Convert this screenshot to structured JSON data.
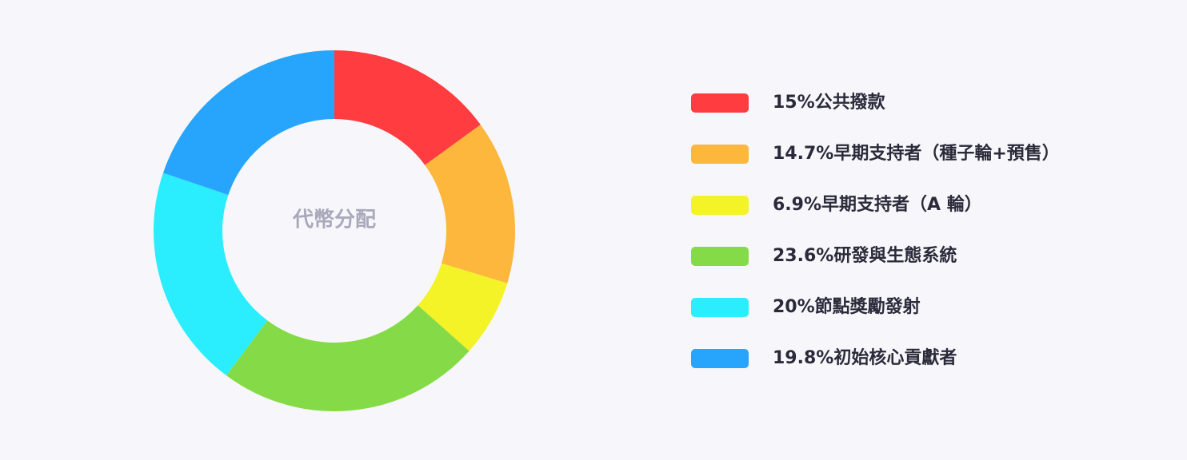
{
  "chart_data": {
    "type": "pie",
    "variant": "donut",
    "center_label": "代幣分配",
    "categories": [
      "15%公共撥款",
      "14.7%早期支持者（種子輪+預售）",
      "6.9%早期支持者（A 輪）",
      "23.6%研發與生態系統",
      "20%節點獎勵發射",
      "19.8%初始核心貢獻者"
    ],
    "values": [
      15,
      14.7,
      6.9,
      23.6,
      20,
      19.8
    ],
    "colors": [
      "#ff3c3f",
      "#fdb73c",
      "#f4f327",
      "#85db47",
      "#2aeefe",
      "#27a5fd"
    ],
    "legend_position": "right"
  }
}
